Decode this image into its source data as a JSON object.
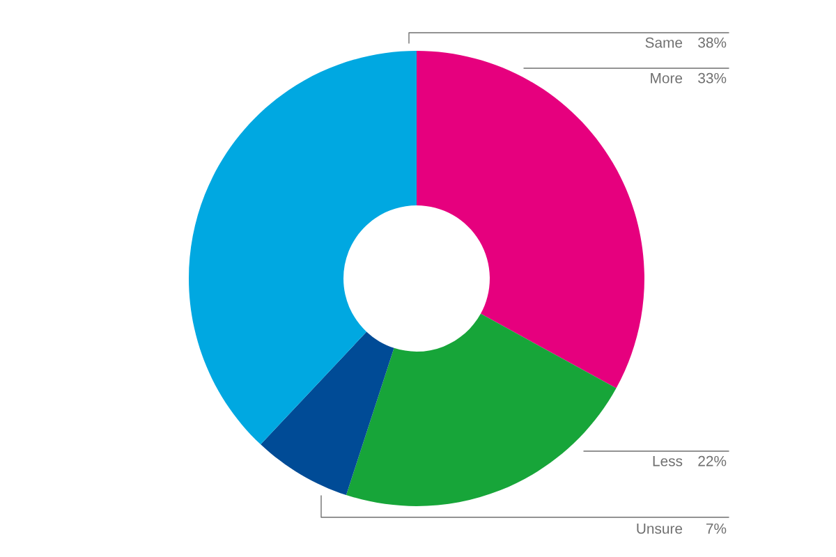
{
  "chart_data": {
    "type": "donut",
    "categories": [
      "More",
      "Less",
      "Unsure",
      "Same"
    ],
    "values": [
      33,
      22,
      7,
      38
    ],
    "value_labels": [
      "33%",
      "22%",
      "7%",
      "38%"
    ],
    "colors": [
      "#e6007e",
      "#17a539",
      "#004b96",
      "#00a8e1"
    ]
  }
}
